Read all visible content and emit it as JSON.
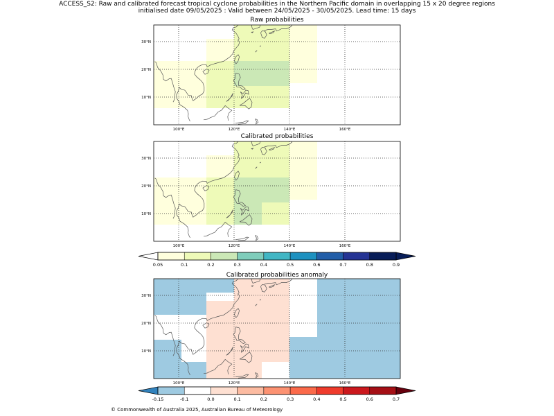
{
  "header": {
    "title_line1": "ACCESS_S2: Raw and calibrated forecast tropical cyclone probabilities in the Northern Pacific domain in overlapping 15 x 20 degree regions",
    "title_line2": "initialised date 09/05/2025 :  Valid between 24/05/2025 - 30/05/2025. Lead time: 15 days"
  },
  "copyright": "© Commonwealth of Australia 2025, Australian Bureau of Meteorology",
  "chart_data": [
    {
      "type": "heatmap",
      "title": "Raw probabilities",
      "xlim": [
        91,
        180
      ],
      "ylim": [
        0,
        36
      ],
      "xticks": [
        100,
        120,
        140,
        160
      ],
      "xtick_labels": [
        "100°E",
        "120°E",
        "140°E",
        "160°E"
      ],
      "yticks": [
        10,
        20,
        30
      ],
      "ytick_labels": [
        "10°N",
        "20°N",
        "30°N"
      ],
      "grid": true,
      "cells": [
        {
          "lon": [
            91,
            100
          ],
          "lat": [
            23,
            36
          ],
          "value": 0
        },
        {
          "lon": [
            91,
            101
          ],
          "lat": [
            6,
            23
          ],
          "value": 0.06
        },
        {
          "lon": [
            101,
            110
          ],
          "lat": [
            6,
            23
          ],
          "value": 0.06
        },
        {
          "lon": [
            110,
            120
          ],
          "lat": [
            28,
            36
          ],
          "value": 0
        },
        {
          "lon": [
            110,
            120
          ],
          "lat": [
            23,
            31
          ],
          "value": 0.06
        },
        {
          "lon": [
            110,
            120
          ],
          "lat": [
            6,
            23
          ],
          "value": 0.11
        },
        {
          "lon": [
            120,
            130
          ],
          "lat": [
            23,
            36
          ],
          "value": 0.11
        },
        {
          "lon": [
            120,
            130
          ],
          "lat": [
            14,
            23
          ],
          "value": 0.22
        },
        {
          "lon": [
            120,
            130
          ],
          "lat": [
            6,
            14
          ],
          "value": 0.11
        },
        {
          "lon": [
            130,
            140
          ],
          "lat": [
            23,
            36
          ],
          "value": 0.11
        },
        {
          "lon": [
            130,
            140
          ],
          "lat": [
            14,
            23
          ],
          "value": 0.22
        },
        {
          "lon": [
            130,
            140
          ],
          "lat": [
            6,
            14
          ],
          "value": 0.11
        },
        {
          "lon": [
            140,
            150
          ],
          "lat": [
            15,
            36
          ],
          "value": 0.06
        }
      ]
    },
    {
      "type": "heatmap",
      "title": "Calibrated probabilities",
      "xlim": [
        91,
        180
      ],
      "ylim": [
        0,
        36
      ],
      "xticks": [
        100,
        120,
        140,
        160
      ],
      "xtick_labels": [
        "100°E",
        "120°E",
        "140°E",
        "160°E"
      ],
      "yticks": [
        10,
        20,
        30
      ],
      "ytick_labels": [
        "10°N",
        "20°N",
        "30°N"
      ],
      "grid": true,
      "cells": [
        {
          "lon": [
            91,
            101
          ],
          "lat": [
            6,
            23
          ],
          "value": 0.06
        },
        {
          "lon": [
            101,
            110
          ],
          "lat": [
            6,
            23
          ],
          "value": 0.06
        },
        {
          "lon": [
            110,
            120
          ],
          "lat": [
            23,
            31
          ],
          "value": 0.06
        },
        {
          "lon": [
            110,
            120
          ],
          "lat": [
            6,
            23
          ],
          "value": 0.11
        },
        {
          "lon": [
            120,
            130
          ],
          "lat": [
            23,
            36
          ],
          "value": 0.11
        },
        {
          "lon": [
            120,
            130
          ],
          "lat": [
            14,
            23
          ],
          "value": 0.22
        },
        {
          "lon": [
            120,
            130
          ],
          "lat": [
            6,
            14
          ],
          "value": 0.22
        },
        {
          "lon": [
            130,
            140
          ],
          "lat": [
            23,
            36
          ],
          "value": 0.11
        },
        {
          "lon": [
            130,
            140
          ],
          "lat": [
            14,
            23
          ],
          "value": 0.22
        },
        {
          "lon": [
            130,
            140
          ],
          "lat": [
            6,
            14
          ],
          "value": 0.11
        },
        {
          "lon": [
            140,
            150
          ],
          "lat": [
            15,
            36
          ],
          "value": 0.06
        }
      ]
    },
    {
      "type": "heatmap",
      "title": "Calibrated probabilities anomaly",
      "xlim": [
        91,
        180
      ],
      "ylim": [
        0,
        36
      ],
      "xticks": [
        100,
        120,
        140,
        160
      ],
      "xtick_labels": [
        "100°E",
        "120°E",
        "140°E",
        "160°E"
      ],
      "yticks": [
        10,
        20,
        30
      ],
      "ytick_labels": [
        "10°N",
        "20°N",
        "30°N"
      ],
      "grid": true,
      "background_value": -0.12,
      "cells": [
        {
          "lon": [
            91,
            101
          ],
          "lat": [
            14,
            23
          ],
          "value": -0.08
        },
        {
          "lon": [
            101,
            110
          ],
          "lat": [
            6,
            23
          ],
          "value": -0.08
        },
        {
          "lon": [
            110,
            120
          ],
          "lat": [
            28,
            31
          ],
          "value": -0.08
        },
        {
          "lon": [
            110,
            120
          ],
          "lat": [
            0,
            28
          ],
          "value": 0
        },
        {
          "lon": [
            120,
            140
          ],
          "lat": [
            23,
            36
          ],
          "value": 0
        },
        {
          "lon": [
            120,
            140
          ],
          "lat": [
            15,
            23
          ],
          "value": 0.02
        },
        {
          "lon": [
            120,
            130
          ],
          "lat": [
            0,
            15
          ],
          "value": 0
        },
        {
          "lon": [
            122,
            130
          ],
          "lat": [
            6,
            15
          ],
          "value": 0.02
        },
        {
          "lon": [
            130,
            140
          ],
          "lat": [
            6,
            15
          ],
          "value": 0
        },
        {
          "lon": [
            130,
            140
          ],
          "lat": [
            0,
            6
          ],
          "value": -0.08
        },
        {
          "lon": [
            140,
            150
          ],
          "lat": [
            15,
            36
          ],
          "value": -0.08
        }
      ]
    }
  ],
  "colorbars": {
    "probability": {
      "tick_labels": [
        "0.05",
        "0.1",
        "0.2",
        "0.3",
        "0.4",
        "0.5",
        "0.6",
        "0.7",
        "0.8",
        "0.9"
      ],
      "colors": [
        "#ffffdd",
        "#eefab8",
        "#cbe8b6",
        "#7fcdbb",
        "#41b6c4",
        "#1d91c0",
        "#225ea8",
        "#253494",
        "#081d58"
      ],
      "under_color": "#ffffff",
      "over_color": "#081d58"
    },
    "anomaly": {
      "tick_labels": [
        "-0.15",
        "-0.1",
        "0.0",
        "0.1",
        "0.2",
        "0.3",
        "0.4",
        "0.5",
        "0.6",
        "0.7"
      ],
      "colors": [
        "#9ecae1",
        "#ffffff",
        "#fee0d2",
        "#fcbba1",
        "#fc9272",
        "#fb6a4a",
        "#ef3b2c",
        "#cb181d",
        "#a50f15"
      ],
      "under_color": "#3182bd",
      "over_color": "#67000d"
    }
  }
}
